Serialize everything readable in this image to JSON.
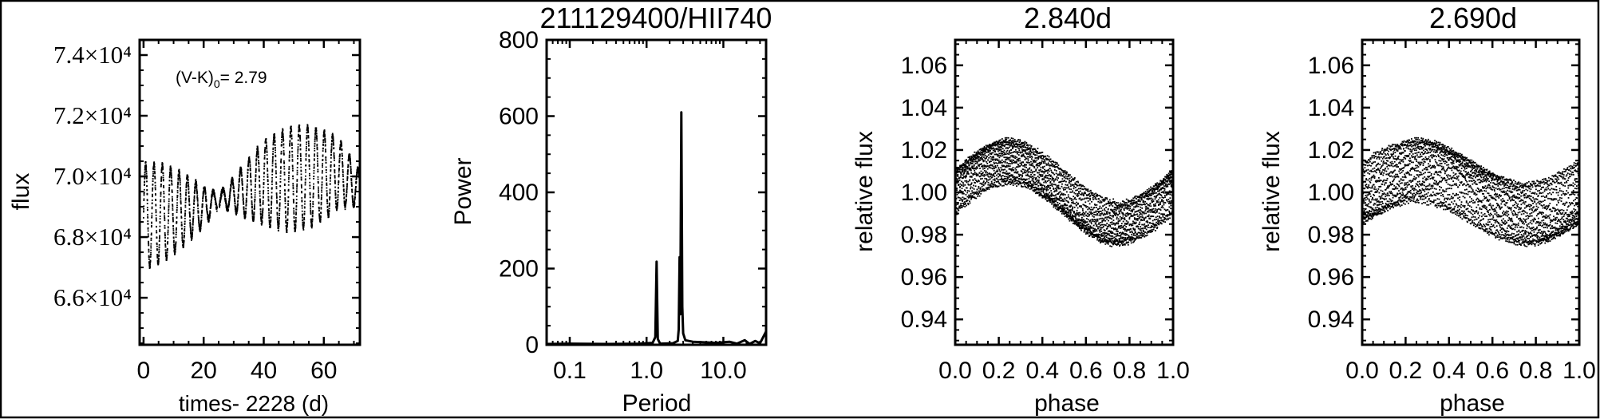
{
  "colors": {
    "ink": "#000000",
    "background": "#ffffff"
  },
  "chart_data": [
    {
      "type": "scatter",
      "xlabel": "times- 2228 (d)",
      "ylabel": "flux",
      "xlim": [
        -1.3,
        72
      ],
      "ylim": [
        64450,
        74500
      ],
      "xticks": [
        0,
        20,
        40,
        60
      ],
      "xtick_labels": [
        "0",
        "20",
        "40",
        "60"
      ],
      "yticks": [
        66000,
        68000,
        70000,
        72000,
        74000
      ],
      "ytick_labels": [
        "6.6×10⁴",
        "6.8×10⁴",
        "7.0×10⁴",
        "7.2×10⁴",
        "7.4×10⁴"
      ],
      "annotation": {
        "prefix": "(V-K)",
        "subscript": "0",
        "suffix": "= 2.79"
      },
      "model": {
        "components": [
          {
            "period": 2.84,
            "amplitude": 1000
          },
          {
            "period": 2.69,
            "amplitude": 700
          }
        ],
        "trend": [
          [
            0,
            68700
          ],
          [
            20,
            69000
          ],
          [
            40,
            69800
          ],
          [
            65,
            70100
          ],
          [
            72,
            69600
          ]
        ],
        "cadence_days": 0.0204,
        "time_range": [
          0,
          71.8
        ]
      }
    },
    {
      "type": "line",
      "title": "211129400/HII740",
      "xlabel": "Period",
      "ylabel": "Power",
      "xscale": "log",
      "xlim": [
        0.05,
        36
      ],
      "ylim": [
        0,
        800
      ],
      "xticks": [
        0.1,
        1,
        10
      ],
      "xtick_labels": [
        "0.1",
        "1.0",
        "10.0"
      ],
      "yticks": [
        0,
        200,
        400,
        600,
        800
      ],
      "ytick_labels": [
        "0",
        "200",
        "400",
        "600",
        "800"
      ],
      "points": [
        [
          0.05,
          2
        ],
        [
          0.1,
          3
        ],
        [
          0.3,
          2
        ],
        [
          0.8,
          3
        ],
        [
          1.2,
          5
        ],
        [
          1.3,
          20
        ],
        [
          1.35,
          218
        ],
        [
          1.4,
          15
        ],
        [
          1.5,
          3
        ],
        [
          2.2,
          4
        ],
        [
          2.55,
          10
        ],
        [
          2.62,
          40
        ],
        [
          2.69,
          230
        ],
        [
          2.75,
          80
        ],
        [
          2.84,
          610
        ],
        [
          2.92,
          100
        ],
        [
          3.0,
          30
        ],
        [
          3.2,
          12
        ],
        [
          4,
          8
        ],
        [
          8,
          5
        ],
        [
          12,
          8
        ],
        [
          15,
          3
        ],
        [
          19,
          12
        ],
        [
          22,
          2
        ],
        [
          26,
          10
        ],
        [
          30,
          4
        ],
        [
          36,
          35
        ]
      ]
    },
    {
      "type": "scatter",
      "title": "2.840d",
      "fold_period": 2.84,
      "xlabel": "phase",
      "ylabel": "relative flux",
      "xlim": [
        0,
        1
      ],
      "ylim": [
        0.928,
        1.072
      ],
      "xticks": [
        0,
        0.2,
        0.4,
        0.6,
        0.8,
        1.0
      ],
      "xtick_labels": [
        "0.0",
        "0.2",
        "0.4",
        "0.6",
        "0.8",
        "1.0"
      ],
      "yticks": [
        0.94,
        0.96,
        0.98,
        1.0,
        1.02,
        1.04,
        1.06
      ],
      "ytick_labels": [
        "0.94",
        "0.96",
        "0.98",
        "1.00",
        "1.02",
        "1.04",
        "1.06"
      ]
    },
    {
      "type": "scatter",
      "title": "2.690d",
      "fold_period": 2.69,
      "xlabel": "phase",
      "ylabel": "relative flux",
      "xlim": [
        0,
        1
      ],
      "ylim": [
        0.928,
        1.072
      ],
      "xticks": [
        0,
        0.2,
        0.4,
        0.6,
        0.8,
        1.0
      ],
      "xtick_labels": [
        "0.0",
        "0.2",
        "0.4",
        "0.6",
        "0.8",
        "1.0"
      ],
      "yticks": [
        0.94,
        0.96,
        0.98,
        1.0,
        1.02,
        1.04,
        1.06
      ],
      "ytick_labels": [
        "0.94",
        "0.96",
        "0.98",
        "1.00",
        "1.02",
        "1.04",
        "1.06"
      ]
    }
  ]
}
